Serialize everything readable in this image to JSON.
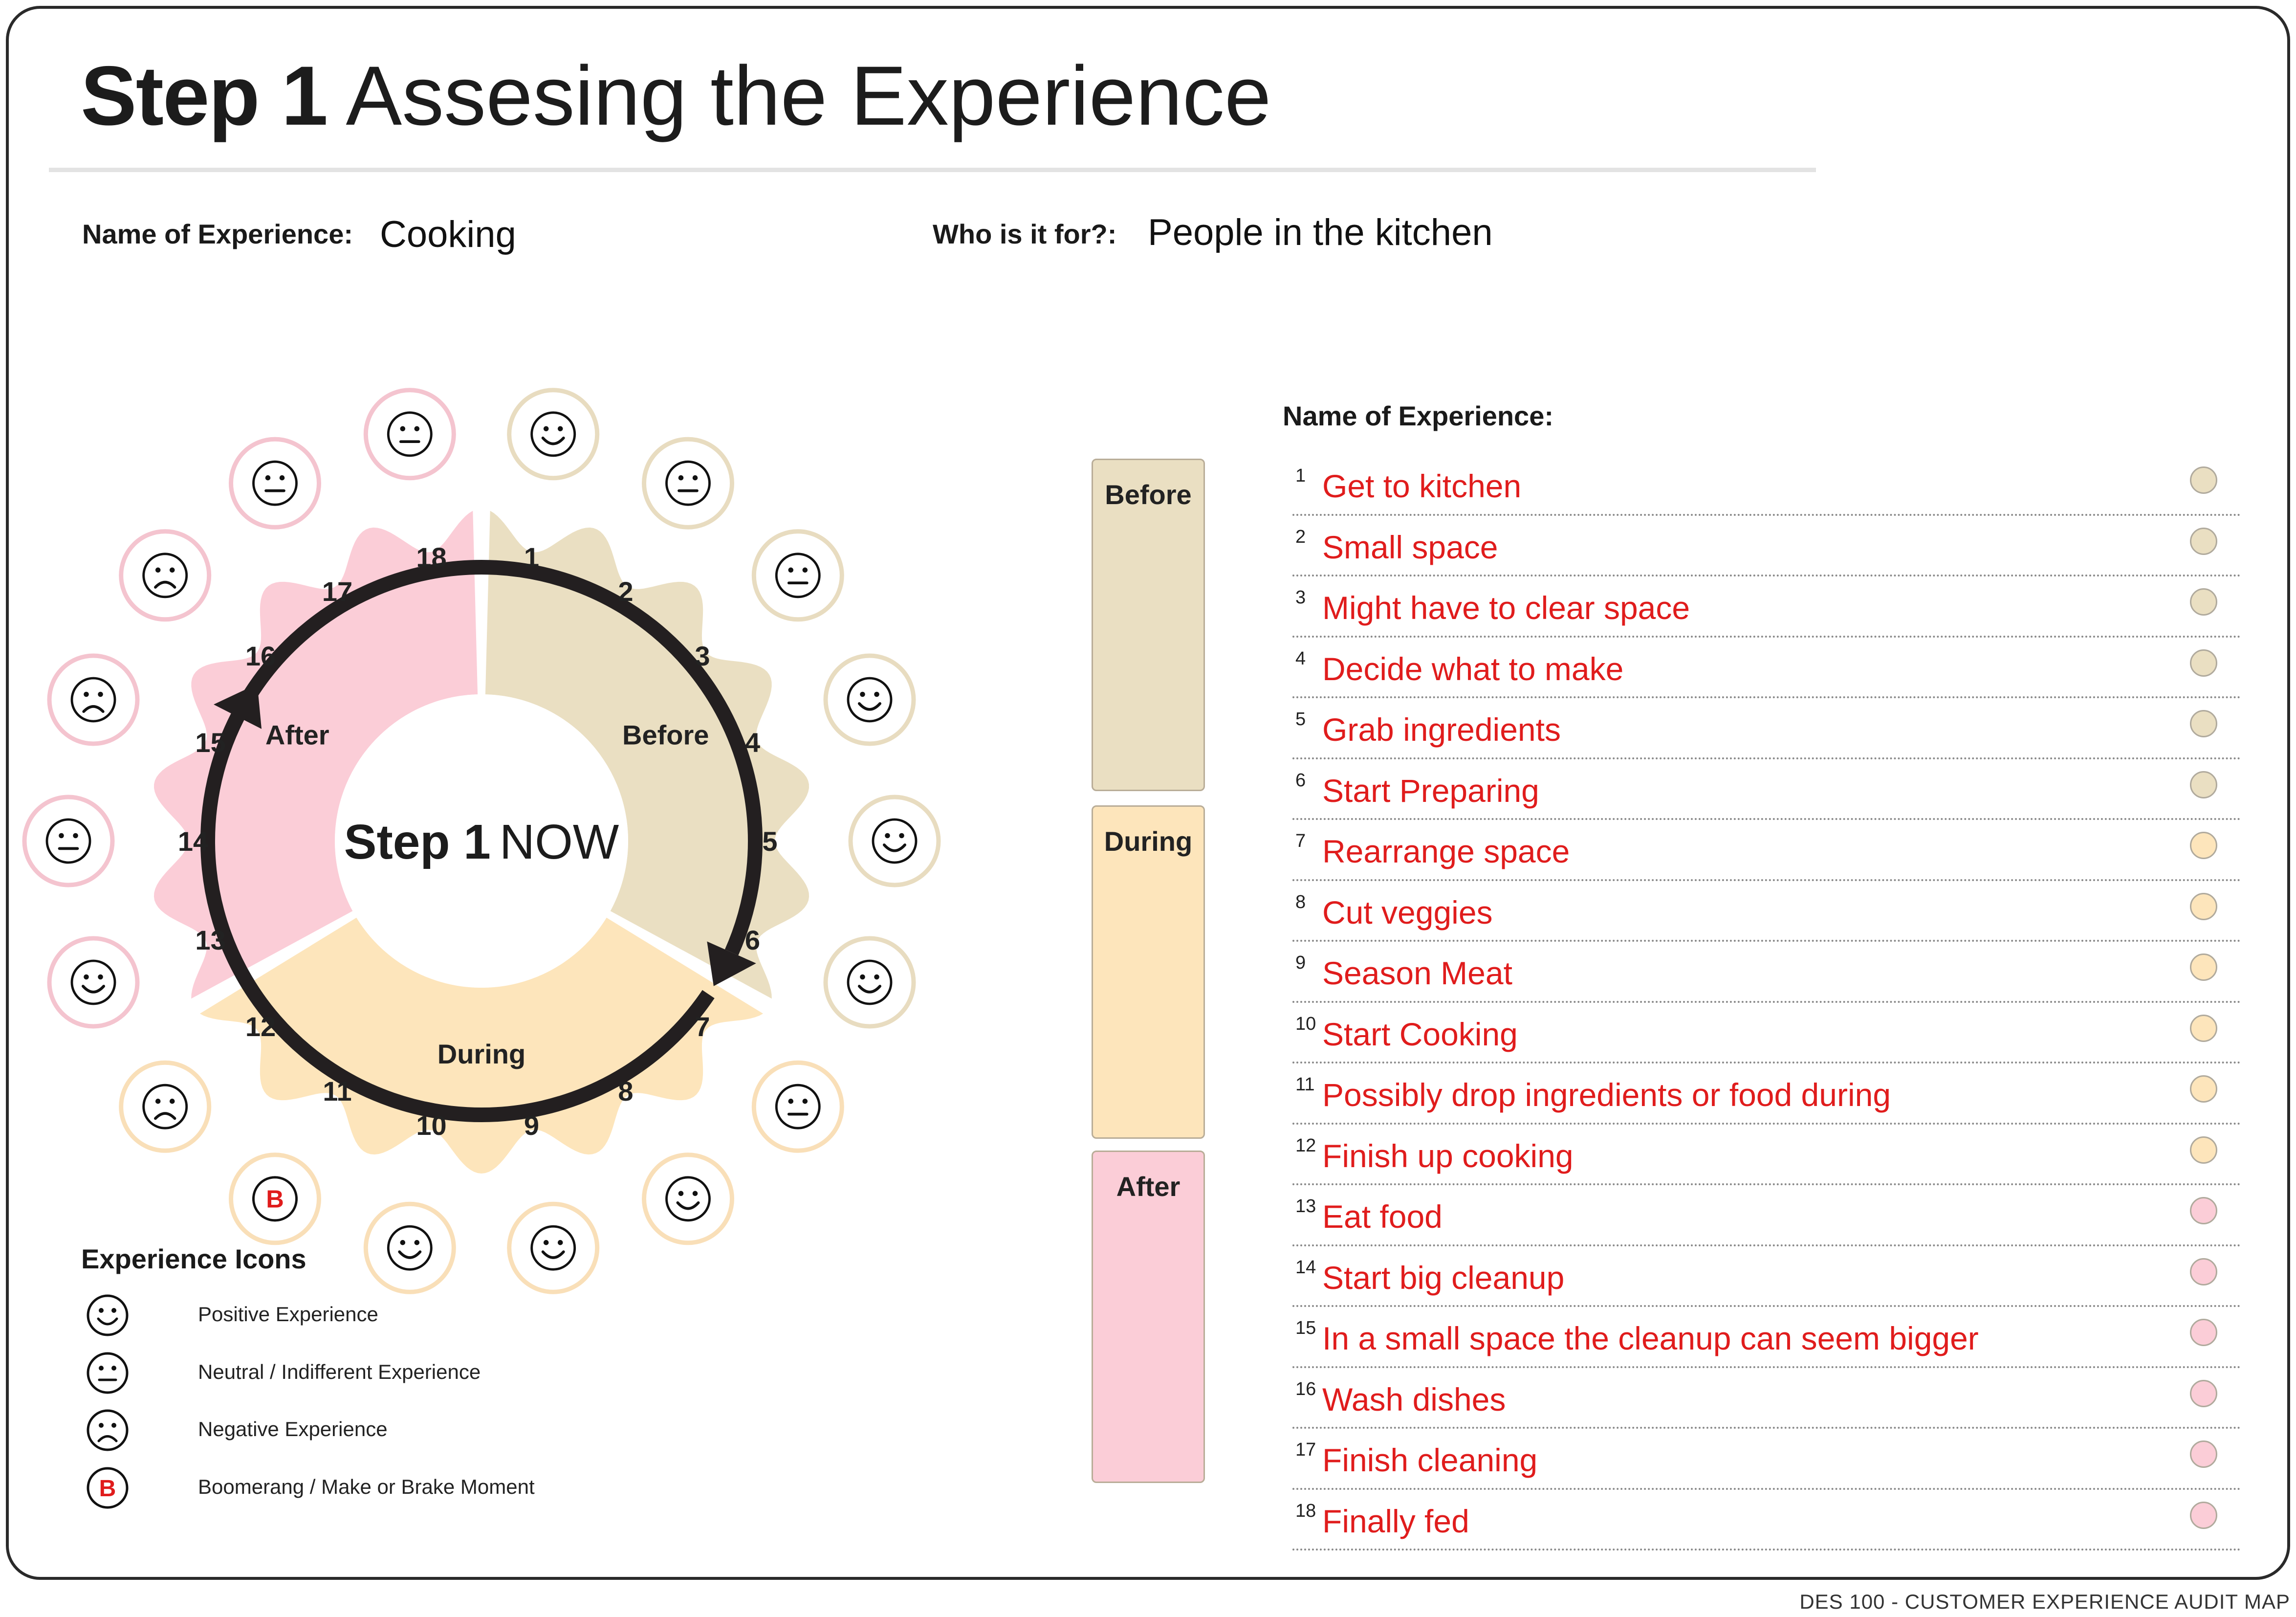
{
  "title": {
    "bold": "Step 1",
    "rest": "Assesing the Experience"
  },
  "fields": {
    "name_label": "Name of Experience:",
    "name_value": "Cooking",
    "who_label": "Who is it for?:",
    "who_value": "People in the kitchen"
  },
  "wheel": {
    "center_bold": "Step 1",
    "center_rest": "NOW",
    "phases": {
      "before": "Before",
      "during": "During",
      "after": "After"
    },
    "steps": [
      {
        "num": "1",
        "phase": "before",
        "face": "positive"
      },
      {
        "num": "2",
        "phase": "before",
        "face": "neutral"
      },
      {
        "num": "3",
        "phase": "before",
        "face": "neutral"
      },
      {
        "num": "4",
        "phase": "before",
        "face": "positive"
      },
      {
        "num": "5",
        "phase": "before",
        "face": "positive"
      },
      {
        "num": "6",
        "phase": "before",
        "face": "positive"
      },
      {
        "num": "7",
        "phase": "during",
        "face": "neutral"
      },
      {
        "num": "8",
        "phase": "during",
        "face": "positive"
      },
      {
        "num": "9",
        "phase": "during",
        "face": "positive"
      },
      {
        "num": "10",
        "phase": "during",
        "face": "positive"
      },
      {
        "num": "11",
        "phase": "during",
        "face": "boomerang"
      },
      {
        "num": "12",
        "phase": "during",
        "face": "negative"
      },
      {
        "num": "13",
        "phase": "after",
        "face": "positive"
      },
      {
        "num": "14",
        "phase": "after",
        "face": "neutral"
      },
      {
        "num": "15",
        "phase": "after",
        "face": "negative"
      },
      {
        "num": "16",
        "phase": "after",
        "face": "negative"
      },
      {
        "num": "17",
        "phase": "after",
        "face": "neutral"
      },
      {
        "num": "18",
        "phase": "after",
        "face": "neutral"
      }
    ]
  },
  "legend": {
    "title": "Experience Icons",
    "items": [
      {
        "icon": "positive",
        "label": "Positive Experience"
      },
      {
        "icon": "neutral",
        "label": "Neutral / Indifferent Experience"
      },
      {
        "icon": "negative",
        "label": "Negative Experience"
      },
      {
        "icon": "boomerang",
        "label": "Boomerang / Make or Brake Moment"
      }
    ],
    "boomerang_letter": "B"
  },
  "phase_boxes": {
    "before": "Before",
    "during": "During",
    "after": "After"
  },
  "list": {
    "heading": "Name of Experience:",
    "items": [
      {
        "num": "1",
        "text": "Get to kitchen",
        "phase": "before"
      },
      {
        "num": "2",
        "text": "Small space",
        "phase": "before"
      },
      {
        "num": "3",
        "text": "Might have to clear space",
        "phase": "before"
      },
      {
        "num": "4",
        "text": "Decide what to make",
        "phase": "before"
      },
      {
        "num": "5",
        "text": "Grab ingredients",
        "phase": "before"
      },
      {
        "num": "6",
        "text": "Start Preparing",
        "phase": "before"
      },
      {
        "num": "7",
        "text": "Rearrange space",
        "phase": "during"
      },
      {
        "num": "8",
        "text": "Cut veggies",
        "phase": "during"
      },
      {
        "num": "9",
        "text": "Season Meat",
        "phase": "during"
      },
      {
        "num": "10",
        "text": "Start Cooking",
        "phase": "during"
      },
      {
        "num": "11",
        "text": "Possibly drop ingredients or food during",
        "phase": "during"
      },
      {
        "num": "12",
        "text": "Finish up cooking",
        "phase": "during"
      },
      {
        "num": "13",
        "text": "Eat food",
        "phase": "after"
      },
      {
        "num": "14",
        "text": "Start big cleanup",
        "phase": "after"
      },
      {
        "num": "15",
        "text": "In a small space the cleanup can seem bigger",
        "phase": "after"
      },
      {
        "num": "16",
        "text": "Wash dishes",
        "phase": "after"
      },
      {
        "num": "17",
        "text": "Finish cleaning",
        "phase": "after"
      },
      {
        "num": "18",
        "text": "Finally fed",
        "phase": "after"
      }
    ]
  },
  "colors": {
    "before": "#eadfc2",
    "during": "#fde5bb",
    "after": "#fbcdd7",
    "before_ring": "#e8dcc0",
    "during_ring": "#f9dfb8",
    "after_ring": "#f4c4cf",
    "list_text": "#e01c1c",
    "boomerang": "#e01c1c"
  },
  "footer": "DES 100 - CUSTOMER  EXPERIENCE AUDIT MAP"
}
